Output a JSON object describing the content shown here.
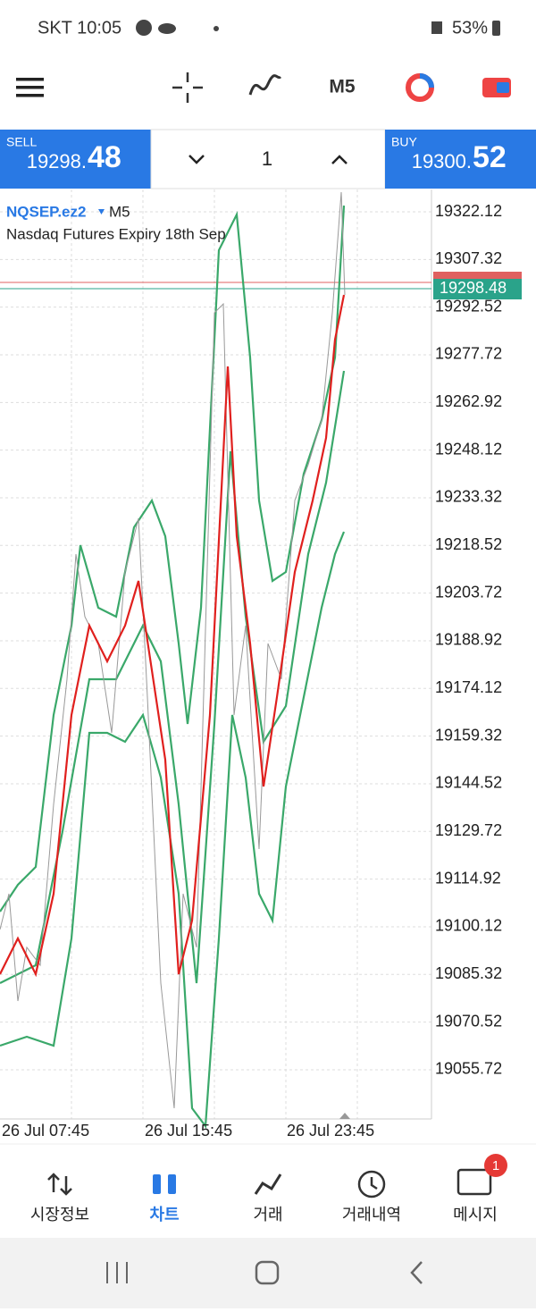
{
  "status_bar": {
    "carrier_time": "SKT 10:05",
    "battery": "53%"
  },
  "toolbar": {
    "timeframe": "M5"
  },
  "quote": {
    "sell_label": "SELL",
    "sell_main": "19298.",
    "sell_pips": "48",
    "lot": "1",
    "buy_label": "BUY",
    "buy_main": "19300.",
    "buy_pips": "52"
  },
  "chart": {
    "symbol": "NQSEP.ez2",
    "timeframe": "M5",
    "description": "Nasdaq Futures Expiry 18th Sep",
    "price_labels": [
      "19322.12",
      "19307.32",
      "19292.52",
      "19277.72",
      "19262.92",
      "19248.12",
      "19233.32",
      "19218.52",
      "19203.72",
      "19188.92",
      "19174.12",
      "19159.32",
      "19144.52",
      "19129.72",
      "19114.92",
      "19100.12",
      "19085.32",
      "19070.52",
      "19055.72"
    ],
    "current_price": "19298.48",
    "time_labels": [
      "26 Jul 07:45",
      "26 Jul 15:45",
      "26 Jul 23:45"
    ]
  },
  "bottom_nav": {
    "items": [
      "시장정보",
      "차트",
      "거래",
      "거래내역",
      "메시지"
    ],
    "badge": "1"
  }
}
